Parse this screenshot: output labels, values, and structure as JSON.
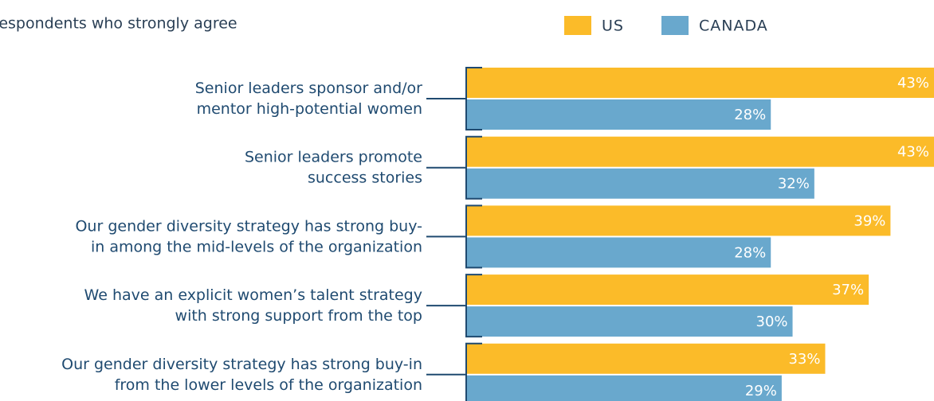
{
  "chart_data": {
    "type": "bar",
    "orientation": "horizontal",
    "title": "Respondents who strongly agree",
    "categories": [
      [
        "Senior leaders sponsor and/or",
        "mentor high-potential women"
      ],
      [
        "Senior leaders promote",
        "success stories"
      ],
      [
        "Our gender diversity strategy has strong buy-",
        "in among the mid-levels of the organization"
      ],
      [
        "We have an explicit women’s talent strategy",
        "with strong support from the top"
      ],
      [
        "Our gender diversity strategy has strong buy-in",
        "from the lower levels of the organization"
      ]
    ],
    "series": [
      {
        "name": "US",
        "color": "#fbbb29",
        "values": [
          43,
          43,
          39,
          37,
          33
        ],
        "value_labels": [
          "43%",
          "43%",
          "39%",
          "37%",
          "33%"
        ]
      },
      {
        "name": "CANADA",
        "color": "#69a8cd",
        "values": [
          28,
          32,
          28,
          30,
          29
        ],
        "value_labels": [
          "28%",
          "32%",
          "28%",
          "30%",
          "29%"
        ]
      }
    ],
    "xlim": [
      0,
      43
    ]
  }
}
